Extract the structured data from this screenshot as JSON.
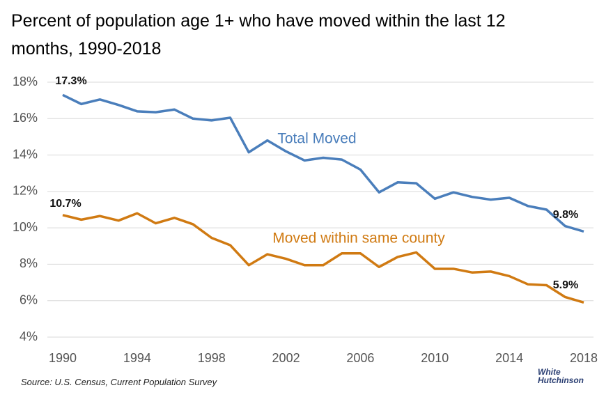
{
  "chart_data": {
    "type": "line",
    "title": "Percent of population age 1+ who have moved within the last 12 months, 1990-2018",
    "source": "Source: U.S. Census, Current Population Survey",
    "logo": "White Hutchinson",
    "x": [
      1990,
      1991,
      1992,
      1993,
      1994,
      1995,
      1996,
      1997,
      1998,
      1999,
      2000,
      2001,
      2002,
      2003,
      2004,
      2005,
      2006,
      2007,
      2008,
      2009,
      2010,
      2011,
      2012,
      2013,
      2014,
      2015,
      2016,
      2017,
      2018
    ],
    "series": [
      {
        "name": "Total Moved",
        "color": "#4a7ebb",
        "values": [
          17.3,
          16.8,
          17.05,
          16.75,
          16.4,
          16.35,
          16.5,
          16.0,
          15.9,
          16.05,
          14.15,
          14.8,
          14.2,
          13.7,
          13.85,
          13.75,
          13.2,
          11.95,
          12.5,
          12.45,
          11.6,
          11.95,
          11.7,
          11.55,
          11.65,
          11.2,
          11.0,
          10.1,
          9.8
        ],
        "value_labels": [
          "17.3%",
          null,
          null,
          null,
          null,
          null,
          null,
          null,
          null,
          null,
          null,
          null,
          null,
          null,
          null,
          null,
          null,
          null,
          null,
          null,
          null,
          null,
          null,
          null,
          null,
          null,
          null,
          null,
          "9.8%"
        ]
      },
      {
        "name": "Moved within same county",
        "color": "#d07a12",
        "values": [
          10.7,
          10.45,
          10.65,
          10.4,
          10.8,
          10.25,
          10.55,
          10.2,
          9.45,
          9.05,
          7.95,
          8.55,
          8.3,
          7.95,
          7.95,
          8.6,
          8.6,
          7.85,
          8.4,
          8.65,
          7.75,
          7.75,
          7.55,
          7.6,
          7.35,
          6.9,
          6.85,
          6.2,
          5.9
        ],
        "value_labels": [
          "10.7%",
          null,
          null,
          null,
          null,
          null,
          null,
          null,
          null,
          null,
          null,
          null,
          null,
          null,
          null,
          null,
          null,
          null,
          null,
          null,
          null,
          null,
          null,
          null,
          null,
          null,
          null,
          null,
          "5.9%"
        ]
      }
    ],
    "xlim": [
      1990,
      2018
    ],
    "xticks": [
      1990,
      1994,
      1998,
      2002,
      2006,
      2010,
      2014,
      2018
    ],
    "ylim": [
      4,
      18
    ],
    "yticks": [
      {
        "value": 4,
        "label": "4%"
      },
      {
        "value": 6,
        "label": "6%"
      },
      {
        "value": 8,
        "label": "8%"
      },
      {
        "value": 10,
        "label": "10%"
      },
      {
        "value": 12,
        "label": "12%"
      },
      {
        "value": 14,
        "label": "14%"
      },
      {
        "value": 16,
        "label": "16%"
      },
      {
        "value": 18,
        "label": "18%"
      }
    ],
    "grid": true
  }
}
